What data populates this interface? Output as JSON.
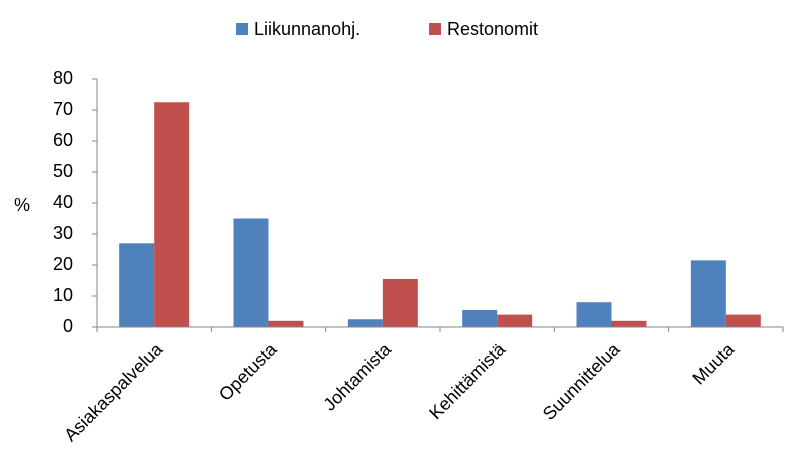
{
  "chart_data": {
    "type": "bar",
    "y_label": "%",
    "categories": [
      "Asiakaspalvelua",
      "Opetusta",
      "Johtamista",
      "Kehittämistä",
      "Suunnittelua",
      "Muuta"
    ],
    "series": [
      {
        "name": "Liikunnanohj.",
        "color": "#4f81bd",
        "values": [
          27,
          35,
          2.5,
          5.5,
          8,
          21.5
        ]
      },
      {
        "name": "Restonomit",
        "color": "#c0504d",
        "values": [
          72.5,
          2,
          15.5,
          4,
          2,
          4
        ]
      }
    ],
    "ylim": [
      0,
      80
    ],
    "yticks": [
      0,
      10,
      20,
      30,
      40,
      50,
      60,
      70,
      80
    ],
    "grid": false,
    "legend": "top"
  }
}
